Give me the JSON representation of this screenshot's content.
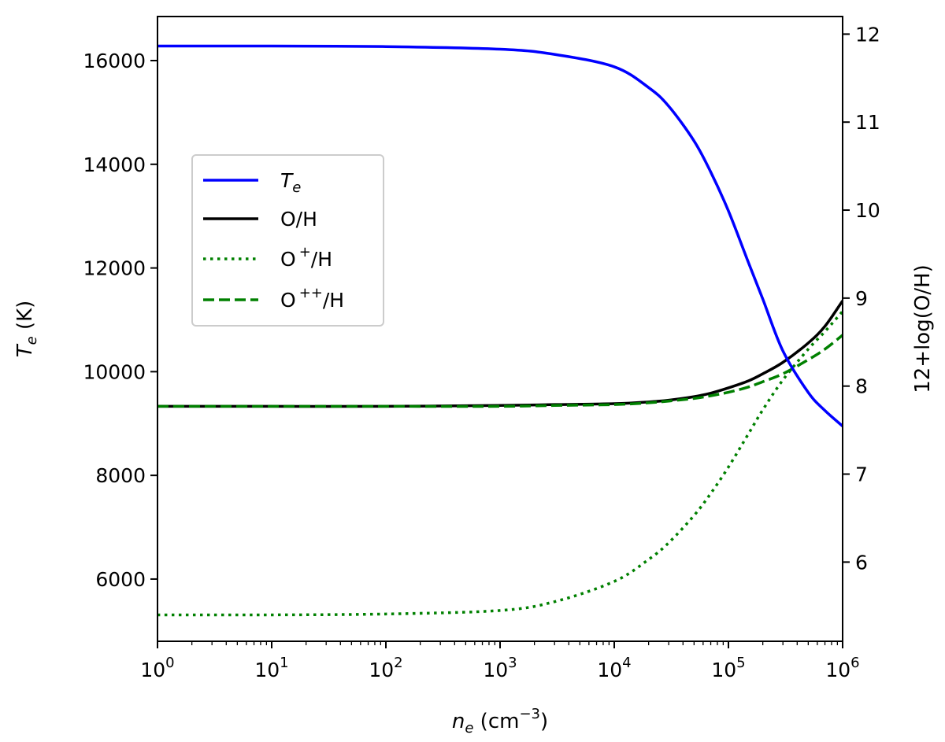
{
  "chart_data": {
    "type": "line",
    "x_scale": "log",
    "xlim": [
      1,
      1000000
    ],
    "xlabel": {
      "main": "n",
      "sub": "e",
      "unit_pre": " (cm",
      "unit_sup": "−3",
      "unit_post": ")"
    },
    "x_ticks": [
      {
        "value": 1,
        "base": "10",
        "exp": "0"
      },
      {
        "value": 10,
        "base": "10",
        "exp": "1"
      },
      {
        "value": 100,
        "base": "10",
        "exp": "2"
      },
      {
        "value": 1000,
        "base": "10",
        "exp": "3"
      },
      {
        "value": 10000,
        "base": "10",
        "exp": "4"
      },
      {
        "value": 100000,
        "base": "10",
        "exp": "5"
      },
      {
        "value": 1000000,
        "base": "10",
        "exp": "6"
      }
    ],
    "y_left": {
      "label": {
        "main": "T",
        "sub": "e",
        "unit": " (K)"
      },
      "lim": [
        4800,
        16850
      ],
      "ticks": [
        6000,
        8000,
        10000,
        12000,
        14000,
        16000
      ],
      "tick_labels": [
        "6000",
        "8000",
        "10000",
        "12000",
        "14000",
        "16000"
      ]
    },
    "y_right": {
      "label": "12+log(O/H)",
      "lim": [
        5.1,
        12.2
      ],
      "ticks": [
        6,
        7,
        8,
        9,
        10,
        11,
        12
      ],
      "tick_labels": [
        "6",
        "7",
        "8",
        "9",
        "10",
        "11",
        "12"
      ]
    },
    "legend_position": "upper-left",
    "series": [
      {
        "key": "te",
        "name_main": "T",
        "name_sub": "e",
        "name_sup": "",
        "name_post": "",
        "axis": "left",
        "color": "#0000ff",
        "style": "solid",
        "x": [
          1,
          10,
          100,
          1000,
          3000,
          10000,
          20000,
          30000,
          50000,
          70000,
          100000,
          150000,
          200000,
          300000,
          500000,
          700000,
          1000000
        ],
        "y": [
          16280,
          16280,
          16270,
          16220,
          16120,
          15880,
          15480,
          15120,
          14450,
          13850,
          13100,
          12100,
          11400,
          10400,
          9600,
          9250,
          8950
        ]
      },
      {
        "key": "oh",
        "name_main": "O/H",
        "name_sub": "",
        "name_sup": "",
        "name_post": "",
        "axis": "right",
        "color": "#000000",
        "style": "solid",
        "x": [
          1,
          10,
          100,
          1000,
          3000,
          10000,
          20000,
          30000,
          50000,
          70000,
          100000,
          150000,
          200000,
          300000,
          500000,
          700000,
          1000000
        ],
        "y": [
          7.77,
          7.77,
          7.77,
          7.78,
          7.79,
          7.8,
          7.82,
          7.84,
          7.88,
          7.92,
          7.98,
          8.06,
          8.14,
          8.27,
          8.49,
          8.68,
          8.97
        ]
      },
      {
        "key": "op",
        "name_main": "O",
        "name_sub": "",
        "name_sup": "+",
        "name_post": "/H",
        "axis": "right",
        "color": "#008000",
        "style": "dotted",
        "x": [
          1,
          10,
          100,
          1000,
          3000,
          10000,
          20000,
          30000,
          50000,
          70000,
          100000,
          150000,
          200000,
          300000,
          500000,
          700000,
          1000000
        ],
        "y": [
          5.4,
          5.4,
          5.41,
          5.45,
          5.55,
          5.78,
          6.03,
          6.22,
          6.53,
          6.78,
          7.08,
          7.46,
          7.73,
          8.07,
          8.42,
          8.62,
          8.85
        ]
      },
      {
        "key": "opp",
        "name_main": "O",
        "name_sub": "",
        "name_sup": "++",
        "name_post": "/H",
        "axis": "right",
        "color": "#008000",
        "style": "dashed",
        "x": [
          1,
          10,
          100,
          1000,
          3000,
          10000,
          20000,
          30000,
          50000,
          70000,
          100000,
          150000,
          200000,
          300000,
          500000,
          700000,
          1000000
        ],
        "y": [
          7.77,
          7.77,
          7.77,
          7.77,
          7.78,
          7.79,
          7.81,
          7.83,
          7.86,
          7.89,
          7.93,
          7.99,
          8.05,
          8.14,
          8.3,
          8.42,
          8.58
        ]
      }
    ]
  }
}
